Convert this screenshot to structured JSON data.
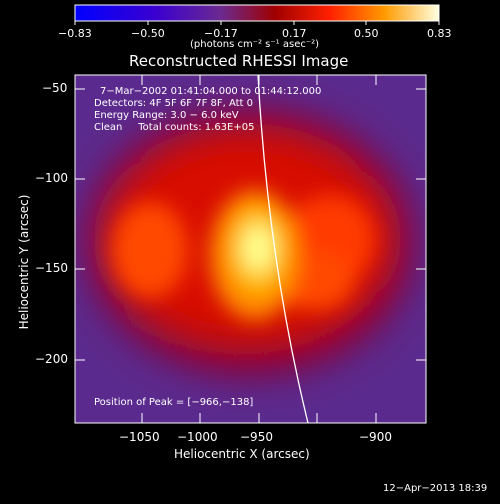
{
  "colorbar": {
    "tick_labels": [
      "−0.83",
      "−0.50",
      "−0.17",
      "0.17",
      "0.50",
      "0.83"
    ],
    "units_label": "(photons cm⁻² s⁻¹ asec⁻²)"
  },
  "plot": {
    "title": "Reconstructed RHESSI Image",
    "info_lines": [
      "7−Mar−2002 01:41:04.000 to 01:44:12.000",
      "Detectors: 4F 5F 6F 7F 8F, Att 0",
      "Energy Range: 3.0 − 6.0 keV",
      "Clean     Total counts: 1.63E+05"
    ],
    "peak_label": "Position of Peak = [−966,−138]",
    "xlabel": "Heliocentric X (arcsec)",
    "ylabel": "Heliocentric Y (arcsec)",
    "x_ticks": [
      "−1050",
      "−1000",
      "−950",
      "−900"
    ],
    "y_ticks": [
      "−50",
      "−100",
      "−150",
      "−200"
    ]
  },
  "footer": {
    "timestamp": "12−Apr−2013 18:39"
  },
  "colors": {
    "background": "#000000",
    "colormap": [
      "#0000ff",
      "#5a00a8",
      "#6a2a90",
      "#8a0000",
      "#e00000",
      "#ff6a00",
      "#ffd000",
      "#ffffe0"
    ]
  }
}
